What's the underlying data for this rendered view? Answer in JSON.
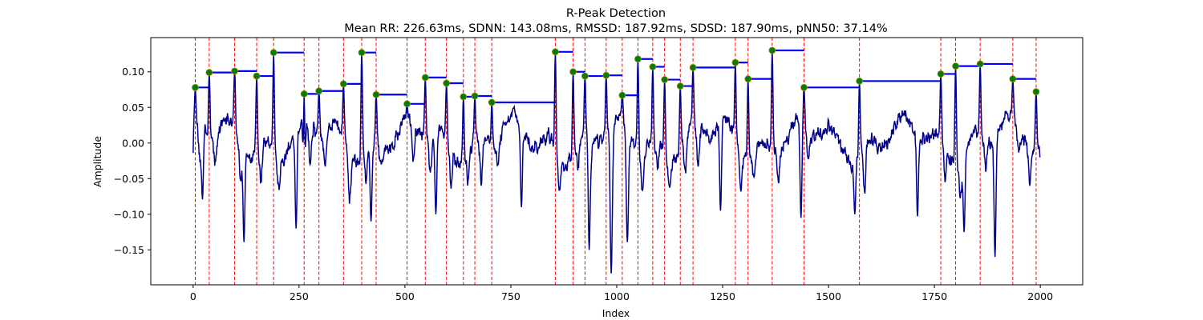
{
  "chart_data": {
    "type": "line",
    "title": "R-Peak Detection",
    "subtitle": "Mean RR: 226.63ms, SDNN: 143.08ms, RMSSD: 187.92ms, SDSD: 187.90ms, pNN50: 37.14%",
    "xlabel": "Index",
    "ylabel": "Amplitude",
    "xlim": [
      -100,
      2100
    ],
    "ylim": [
      -0.199,
      0.148
    ],
    "grid": false,
    "legend": "none",
    "x_ticks": [
      0,
      250,
      500,
      750,
      1000,
      1250,
      1500,
      1750,
      2000
    ],
    "x_tick_labels": [
      "0",
      "250",
      "500",
      "750",
      "1000",
      "1250",
      "1500",
      "1750",
      "2000"
    ],
    "y_ticks": [
      -0.15,
      -0.1,
      -0.05,
      0.0,
      0.05,
      0.1
    ],
    "y_tick_labels": [
      "−0.15",
      "−0.10",
      "−0.05",
      "0.00",
      "0.05",
      "0.10"
    ],
    "signal": {
      "length": 2000,
      "color": "#00008b",
      "minima": [
        {
          "x": 22,
          "y": -0.079
        },
        {
          "x": 120,
          "y": -0.139
        },
        {
          "x": 243,
          "y": -0.12
        },
        {
          "x": 262,
          "y": -0.113
        },
        {
          "x": 420,
          "y": -0.11
        },
        {
          "x": 573,
          "y": -0.1
        },
        {
          "x": 775,
          "y": -0.09
        },
        {
          "x": 935,
          "y": -0.15
        },
        {
          "x": 987,
          "y": -0.183
        },
        {
          "x": 1025,
          "y": -0.139
        },
        {
          "x": 1245,
          "y": -0.095
        },
        {
          "x": 1435,
          "y": -0.105
        },
        {
          "x": 1562,
          "y": -0.1
        },
        {
          "x": 1710,
          "y": -0.103
        },
        {
          "x": 1820,
          "y": -0.125
        },
        {
          "x": 1893,
          "y": -0.16
        },
        {
          "x": 1975,
          "y": -0.06
        }
      ]
    },
    "peaks": {
      "x": [
        5,
        38,
        98,
        150,
        190,
        262,
        297,
        355,
        398,
        432,
        505,
        548,
        598,
        638,
        665,
        705,
        855,
        897,
        925,
        975,
        1013,
        1050,
        1085,
        1113,
        1150,
        1180,
        1280,
        1310,
        1367,
        1442,
        1573,
        1765,
        1800,
        1858,
        1935,
        1990
      ],
      "y": [
        0.078,
        0.099,
        0.101,
        0.094,
        0.127,
        0.069,
        0.073,
        0.083,
        0.127,
        0.068,
        0.055,
        0.092,
        0.084,
        0.065,
        0.066,
        0.057,
        0.128,
        0.1,
        0.094,
        0.095,
        0.067,
        0.118,
        0.107,
        0.089,
        0.08,
        0.106,
        0.113,
        0.09,
        0.13,
        0.078,
        0.087,
        0.097,
        0.108,
        0.111,
        0.09,
        0.072
      ],
      "marker_color": "#008000",
      "vline_color": "#ff0000",
      "hline_color": "#0000ff"
    }
  }
}
